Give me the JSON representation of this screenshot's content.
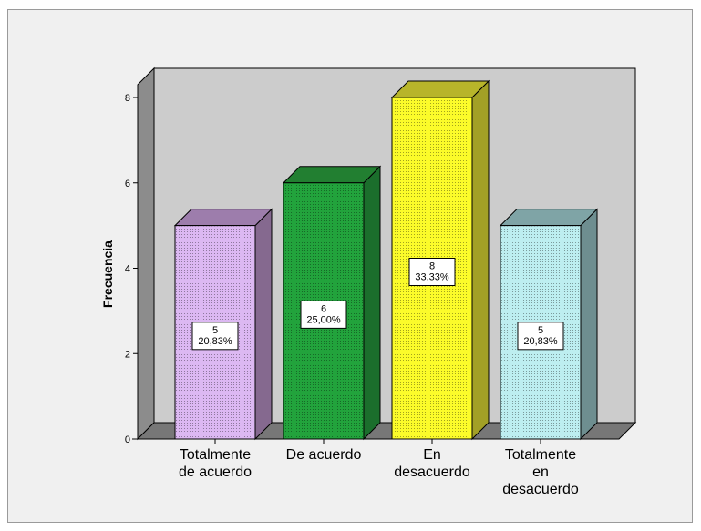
{
  "chart_data": {
    "type": "bar",
    "style": "3d",
    "title": "",
    "xlabel": "",
    "ylabel": "Frecuencia",
    "ylim": [
      0,
      8
    ],
    "yticks": [
      "0",
      "2",
      "4",
      "6",
      "8"
    ],
    "categories": [
      [
        "Totalmente",
        "de acuerdo"
      ],
      [
        "De acuerdo"
      ],
      [
        "En",
        "desacuerdo"
      ],
      [
        "Totalmente",
        "en",
        "desacuerdo"
      ]
    ],
    "values": [
      5,
      6,
      8,
      5
    ],
    "data_labels": [
      [
        "5",
        "20,83%"
      ],
      [
        "6",
        "25,00%"
      ],
      [
        "8",
        "33,33%"
      ],
      [
        "5",
        "20,83%"
      ]
    ],
    "colors": {
      "front": [
        "#dcb8f2",
        "#22a33c",
        "#fbfb2a",
        "#bdeef0"
      ],
      "side": [
        "#85698f",
        "#1b6e2c",
        "#a2a026",
        "#6e8e90"
      ],
      "top": [
        "#9d7dac",
        "#227f31",
        "#b8b52a",
        "#7fa4a6"
      ],
      "back_wall": "#cccccc",
      "side_wall": "#8c8c8c",
      "floor": "#777777"
    },
    "grid": false,
    "legend": "none"
  }
}
